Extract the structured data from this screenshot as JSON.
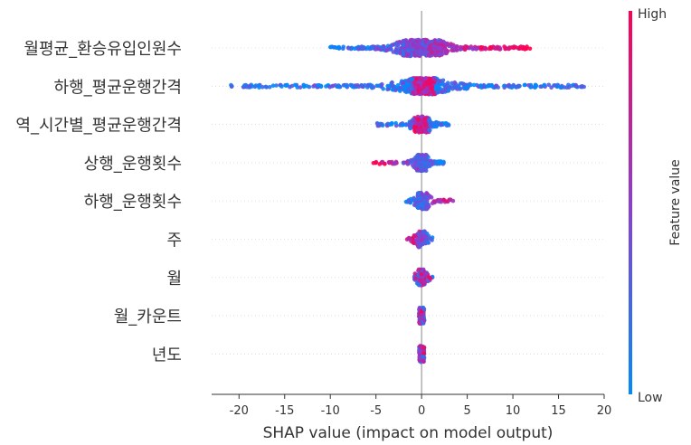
{
  "chart_data": {
    "type": "scatter",
    "subtype": "shap-beeswarm",
    "xlabel": "SHAP value (impact on model output)",
    "xlim": [
      -23,
      20
    ],
    "xticks": [
      -20,
      -15,
      -10,
      -5,
      0,
      5,
      10,
      15,
      20
    ],
    "features": [
      {
        "name": "월평균_환승유입인원수",
        "min": -10,
        "max": 12,
        "core": [
          -2,
          2
        ],
        "low_side": "left"
      },
      {
        "name": "하행_평균운행간격",
        "min": -21,
        "max": 18,
        "core": [
          -1,
          1.5
        ],
        "low_side": "both"
      },
      {
        "name": "역_시간별_평균운행간격",
        "min": -5,
        "max": 3,
        "core": [
          -0.8,
          0.8
        ],
        "low_side": "both"
      },
      {
        "name": "상행_운행횟수",
        "min": -5.3,
        "max": 2.5,
        "core": [
          -0.5,
          0.5
        ],
        "low_side": "right"
      },
      {
        "name": "하행_운행횟수",
        "min": -1.8,
        "max": 4.5,
        "core": [
          -0.4,
          0.6
        ],
        "low_side": "left"
      },
      {
        "name": "주",
        "min": -1.8,
        "max": 1.5,
        "core": [
          -0.4,
          0.4
        ],
        "low_side": "right"
      },
      {
        "name": "월",
        "min": -0.8,
        "max": 1.2,
        "core": [
          -0.3,
          0.3
        ],
        "low_side": "mixed"
      },
      {
        "name": "월_카운트",
        "min": -0.3,
        "max": 0.3,
        "core": [
          -0.2,
          0.2
        ],
        "low_side": "mixed"
      },
      {
        "name": "년도",
        "min": -0.3,
        "max": 0.3,
        "core": [
          -0.2,
          0.2
        ],
        "low_side": "mixed"
      }
    ],
    "colorbar": {
      "label": "Feature value",
      "high": "High",
      "low": "Low"
    },
    "colors": {
      "low": "#008bfb",
      "high": "#ff0052",
      "mid": "#8f3cd0"
    },
    "zero_line": true
  }
}
